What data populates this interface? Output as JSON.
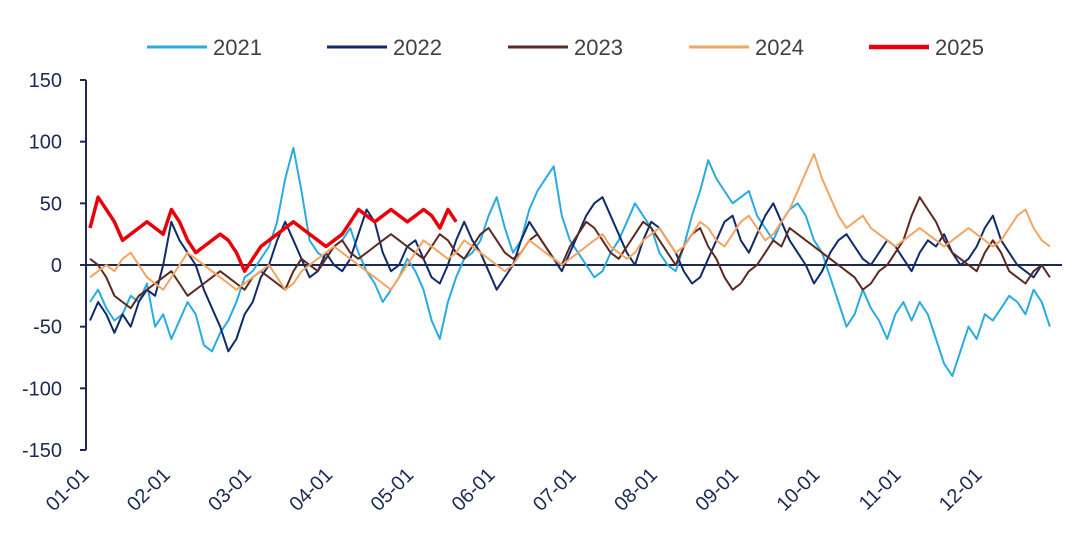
{
  "chart_data": {
    "type": "line",
    "title": "",
    "xlabel": "",
    "ylabel": "",
    "ylim": [
      -150,
      150
    ],
    "yticks": [
      150,
      100,
      50,
      0,
      -50,
      -100,
      -150
    ],
    "x_tick_labels": [
      "01-01",
      "02-01",
      "03-01",
      "04-01",
      "05-01",
      "06-01",
      "07-01",
      "08-01",
      "09-01",
      "10-01",
      "11-01",
      "12-01"
    ],
    "grid": false,
    "legend_position": "top",
    "series": [
      {
        "name": "2021",
        "color": "#29ABE2",
        "stroke_width": 2,
        "values": [
          -30,
          -20,
          -35,
          -45,
          -40,
          -25,
          -30,
          -15,
          -50,
          -40,
          -60,
          -45,
          -30,
          -40,
          -65,
          -70,
          -55,
          -45,
          -30,
          -10,
          -5,
          5,
          15,
          35,
          70,
          95,
          60,
          20,
          10,
          5,
          15,
          20,
          30,
          10,
          -5,
          -15,
          -30,
          -20,
          -10,
          5,
          -5,
          -20,
          -45,
          -60,
          -30,
          -10,
          5,
          10,
          20,
          40,
          55,
          30,
          10,
          20,
          45,
          60,
          70,
          80,
          40,
          20,
          10,
          0,
          -10,
          -5,
          10,
          20,
          35,
          50,
          40,
          30,
          10,
          0,
          -5,
          15,
          40,
          60,
          85,
          70,
          60,
          50,
          55,
          60,
          40,
          30,
          20,
          35,
          45,
          50,
          40,
          20,
          10,
          -10,
          -30,
          -50,
          -40,
          -20,
          -35,
          -45,
          -60,
          -40,
          -30,
          -45,
          -30,
          -40,
          -60,
          -80,
          -90,
          -70,
          -50,
          -60,
          -40,
          -45,
          -35,
          -25,
          -30,
          -40,
          -20,
          -30,
          -50
        ]
      },
      {
        "name": "2022",
        "color": "#0F2B6B",
        "stroke_width": 2,
        "values": [
          -45,
          -30,
          -40,
          -55,
          -40,
          -50,
          -30,
          -20,
          -25,
          0,
          35,
          20,
          10,
          0,
          -20,
          -35,
          -50,
          -70,
          -60,
          -40,
          -30,
          -10,
          0,
          20,
          35,
          20,
          5,
          -10,
          -5,
          10,
          0,
          -5,
          5,
          25,
          45,
          35,
          10,
          -5,
          0,
          15,
          20,
          5,
          -10,
          -15,
          0,
          20,
          35,
          20,
          10,
          -5,
          -20,
          -10,
          0,
          20,
          35,
          25,
          15,
          5,
          -5,
          10,
          25,
          40,
          50,
          55,
          40,
          25,
          10,
          0,
          20,
          35,
          30,
          20,
          10,
          -5,
          -15,
          -10,
          5,
          20,
          35,
          40,
          20,
          10,
          25,
          40,
          50,
          35,
          20,
          10,
          0,
          -15,
          -5,
          10,
          20,
          25,
          15,
          5,
          0,
          10,
          20,
          15,
          5,
          -5,
          10,
          20,
          15,
          25,
          10,
          0,
          5,
          15,
          30,
          40,
          20,
          10,
          0,
          -5,
          -10,
          0
        ]
      },
      {
        "name": "2023",
        "color": "#5C2A20",
        "stroke_width": 2,
        "values": [
          5,
          0,
          -10,
          -25,
          -30,
          -35,
          -25,
          -20,
          -15,
          -10,
          -5,
          -15,
          -25,
          -20,
          -15,
          -10,
          -5,
          -10,
          -15,
          -20,
          -10,
          -5,
          -10,
          -15,
          -20,
          -5,
          5,
          0,
          -5,
          5,
          15,
          20,
          10,
          5,
          10,
          15,
          20,
          25,
          20,
          15,
          10,
          5,
          15,
          25,
          20,
          10,
          5,
          15,
          25,
          30,
          20,
          10,
          5,
          10,
          20,
          25,
          15,
          5,
          0,
          15,
          25,
          35,
          30,
          20,
          10,
          5,
          15,
          25,
          35,
          30,
          20,
          10,
          0,
          15,
          25,
          30,
          15,
          5,
          -10,
          -20,
          -15,
          -5,
          0,
          10,
          20,
          15,
          30,
          25,
          20,
          15,
          10,
          5,
          0,
          -5,
          -10,
          -20,
          -15,
          -5,
          0,
          10,
          20,
          40,
          55,
          45,
          35,
          20,
          10,
          5,
          0,
          -5,
          10,
          20,
          10,
          -5,
          -10,
          -15,
          -5,
          0,
          -10
        ]
      },
      {
        "name": "2024",
        "color": "#F4A460",
        "stroke_width": 2,
        "values": [
          -10,
          -5,
          0,
          -5,
          5,
          10,
          0,
          -10,
          -15,
          -20,
          -10,
          0,
          10,
          5,
          0,
          -5,
          -10,
          -15,
          -20,
          -15,
          -10,
          -5,
          0,
          -10,
          -20,
          -15,
          -5,
          0,
          5,
          10,
          15,
          10,
          5,
          0,
          -5,
          -10,
          -15,
          -20,
          -10,
          0,
          10,
          20,
          15,
          10,
          5,
          10,
          20,
          15,
          10,
          5,
          0,
          -5,
          0,
          10,
          20,
          15,
          10,
          5,
          0,
          5,
          10,
          15,
          20,
          25,
          15,
          10,
          5,
          10,
          20,
          25,
          30,
          20,
          10,
          15,
          25,
          35,
          30,
          20,
          15,
          25,
          35,
          40,
          30,
          20,
          25,
          35,
          45,
          60,
          75,
          90,
          70,
          55,
          40,
          30,
          35,
          40,
          30,
          25,
          20,
          15,
          20,
          25,
          30,
          25,
          20,
          15,
          20,
          25,
          30,
          25,
          20,
          15,
          20,
          30,
          40,
          45,
          30,
          20,
          15
        ]
      },
      {
        "name": "2025",
        "color": "#E8000B",
        "stroke_width": 3.5,
        "values": [
          30,
          55,
          45,
          35,
          20,
          25,
          30,
          35,
          30,
          25,
          45,
          35,
          20,
          10,
          15,
          20,
          25,
          20,
          10,
          -5,
          5,
          15,
          20,
          25,
          30,
          35,
          30,
          25,
          20,
          15,
          20,
          25,
          35,
          45,
          40,
          35,
          40,
          45,
          40,
          35,
          40,
          45,
          40,
          30,
          45,
          35
        ]
      }
    ]
  }
}
